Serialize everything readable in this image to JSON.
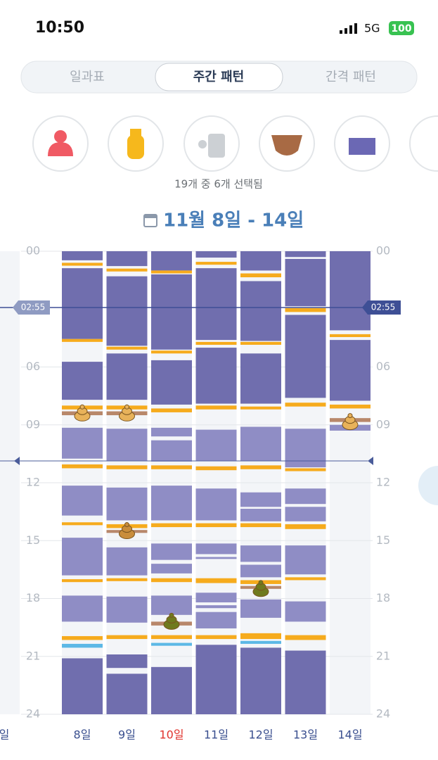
{
  "status": {
    "time": "10:50",
    "network": "5G",
    "battery": "100"
  },
  "tabs": [
    "일과표",
    "주간 패턴",
    "간격 패턴"
  ],
  "active_tab": 1,
  "selection_note": "19개 중 6개 선택됨",
  "range_title": "11월 8일 - 14일",
  "hour_ticks": [
    {
      "value": 0,
      "label": "00"
    },
    {
      "value": 6,
      "label": "06"
    },
    {
      "value": 9,
      "label": "09"
    },
    {
      "value": 12,
      "label": "12"
    },
    {
      "value": 15,
      "label": "15"
    },
    {
      "value": 18,
      "label": "18"
    },
    {
      "value": 21,
      "label": "21"
    },
    {
      "value": 24,
      "label": "24"
    }
  ],
  "hour_range": [
    0,
    24
  ],
  "time_marker": {
    "label": "02:55",
    "hour": 2.9167
  },
  "reference_line_hour": 10.87,
  "left_day_label": "일",
  "days": [
    {
      "label": "8일",
      "color": "#3a4f8f",
      "blocks": [
        [
          0,
          0.47,
          "#706eae"
        ],
        [
          0.6,
          0.75,
          "#f6ab1d"
        ],
        [
          0.88,
          4.55,
          "#706eae"
        ],
        [
          4.55,
          4.7,
          "#f6ab1d"
        ],
        [
          5.73,
          7.7,
          "#706eae"
        ],
        [
          8.0,
          8.2,
          "#f6ab1d"
        ],
        [
          8.3,
          8.5,
          "#b8876a"
        ],
        [
          9.15,
          10.75,
          "#8f8dc5"
        ],
        [
          11.05,
          11.25,
          "#f6ab1d"
        ],
        [
          12.15,
          13.7,
          "#8f8dc5"
        ],
        [
          14.05,
          14.2,
          "#f6ab1d"
        ],
        [
          14.85,
          16.8,
          "#8f8dc5"
        ],
        [
          17.0,
          17.15,
          "#f6ab1d"
        ],
        [
          17.85,
          19.2,
          "#8f8dc5"
        ],
        [
          19.95,
          20.15,
          "#f6ab1d"
        ],
        [
          20.35,
          20.55,
          "#5cb8e6"
        ],
        [
          21.1,
          24,
          "#706eae"
        ]
      ],
      "icons": [
        [
          8.4,
          "#e8b25a"
        ]
      ]
    },
    {
      "label": "9일",
      "color": "#3a4f8f",
      "blocks": [
        [
          0,
          0.77,
          "#706eae"
        ],
        [
          0.9,
          1.05,
          "#f6ab1d"
        ],
        [
          1.3,
          4.9,
          "#706eae"
        ],
        [
          4.95,
          5.1,
          "#f6ab1d"
        ],
        [
          5.3,
          7.7,
          "#706eae"
        ],
        [
          8.0,
          8.2,
          "#f6ab1d"
        ],
        [
          8.3,
          8.5,
          "#b8876a"
        ],
        [
          9.2,
          10.85,
          "#8f8dc5"
        ],
        [
          11.1,
          11.3,
          "#f6ab1d"
        ],
        [
          12.25,
          13.95,
          "#8f8dc5"
        ],
        [
          14.15,
          14.35,
          "#f6ab1d"
        ],
        [
          14.45,
          14.6,
          "#b8876a"
        ],
        [
          15.35,
          16.8,
          "#8f8dc5"
        ],
        [
          16.95,
          17.1,
          "#f6ab1d"
        ],
        [
          17.9,
          19.25,
          "#8f8dc5"
        ],
        [
          19.9,
          20.1,
          "#f6ab1d"
        ],
        [
          20.9,
          21.6,
          "#706eae"
        ],
        [
          21.9,
          24,
          "#706eae"
        ]
      ],
      "icons": [
        [
          8.4,
          "#e8b25a"
        ],
        [
          14.5,
          "#c98d3c"
        ]
      ]
    },
    {
      "label": "10일",
      "color": "#e0342e",
      "blocks": [
        [
          0,
          1,
          "#706eae"
        ],
        [
          1.0,
          1.15,
          "#f6ab1d"
        ],
        [
          1.2,
          5.1,
          "#706eae"
        ],
        [
          5.15,
          5.3,
          "#f6ab1d"
        ],
        [
          5.65,
          7.95,
          "#706eae"
        ],
        [
          8.15,
          8.35,
          "#f6ab1d"
        ],
        [
          9.15,
          9.6,
          "#8f8dc5"
        ],
        [
          9.8,
          10.9,
          "#8f8dc5"
        ],
        [
          11.1,
          11.3,
          "#f6ab1d"
        ],
        [
          12.15,
          13.95,
          "#8f8dc5"
        ],
        [
          14.1,
          14.3,
          "#f6ab1d"
        ],
        [
          15.15,
          16.0,
          "#8f8dc5"
        ],
        [
          16.2,
          16.7,
          "#8f8dc5"
        ],
        [
          16.95,
          17.15,
          "#f6ab1d"
        ],
        [
          17.85,
          18.85,
          "#8f8dc5"
        ],
        [
          19.2,
          19.4,
          "#b8876a"
        ],
        [
          19.9,
          20.1,
          "#f6ab1d"
        ],
        [
          20.3,
          20.45,
          "#5cb8e6"
        ],
        [
          21.55,
          24,
          "#706eae"
        ]
      ],
      "icons": [
        [
          19.2,
          "#6f7a1e"
        ]
      ]
    },
    {
      "label": "11일",
      "color": "#3a4f8f",
      "blocks": [
        [
          0,
          0.33,
          "#706eae"
        ],
        [
          0.55,
          0.7,
          "#f6ab1d"
        ],
        [
          0.88,
          4.6,
          "#706eae"
        ],
        [
          4.7,
          4.85,
          "#f6ab1d"
        ],
        [
          5.0,
          7.9,
          "#706eae"
        ],
        [
          8.0,
          8.2,
          "#f6ab1d"
        ],
        [
          9.25,
          10.85,
          "#8f8dc5"
        ],
        [
          11.15,
          11.35,
          "#f6ab1d"
        ],
        [
          12.3,
          13.95,
          "#8f8dc5"
        ],
        [
          14.1,
          14.3,
          "#f6ab1d"
        ],
        [
          15.15,
          15.7,
          "#8f8dc5"
        ],
        [
          15.85,
          15.95,
          "#8f8dc5"
        ],
        [
          16.95,
          17.2,
          "#f6ab1d"
        ],
        [
          17.7,
          18.2,
          "#8f8dc5"
        ],
        [
          18.35,
          18.5,
          "#8f8dc5"
        ],
        [
          18.7,
          19.55,
          "#8f8dc5"
        ],
        [
          19.9,
          20.1,
          "#f6ab1d"
        ],
        [
          20.4,
          24,
          "#706eae"
        ]
      ],
      "icons": []
    },
    {
      "label": "12일",
      "color": "#3a4f8f",
      "blocks": [
        [
          0,
          1,
          "#706eae"
        ],
        [
          1.15,
          1.35,
          "#f6ab1d"
        ],
        [
          1.55,
          4.65,
          "#706eae"
        ],
        [
          4.7,
          4.85,
          "#f6ab1d"
        ],
        [
          5.3,
          7.9,
          "#706eae"
        ],
        [
          8.05,
          8.2,
          "#f6ab1d"
        ],
        [
          9.1,
          10.85,
          "#8f8dc5"
        ],
        [
          11.1,
          11.3,
          "#f6ab1d"
        ],
        [
          12.5,
          13.25,
          "#8f8dc5"
        ],
        [
          13.35,
          14.0,
          "#8f8dc5"
        ],
        [
          14.1,
          14.3,
          "#f6ab1d"
        ],
        [
          15.25,
          16.1,
          "#8f8dc5"
        ],
        [
          16.25,
          16.9,
          "#8f8dc5"
        ],
        [
          17.05,
          17.25,
          "#f6ab1d"
        ],
        [
          17.35,
          17.5,
          "#b8876a"
        ],
        [
          18.05,
          19.0,
          "#8f8dc5"
        ],
        [
          19.8,
          20.1,
          "#f6ab1d"
        ],
        [
          20.2,
          20.35,
          "#5cb8e6"
        ],
        [
          20.55,
          24,
          "#706eae"
        ]
      ],
      "icons": [
        [
          17.5,
          "#6f7a1e"
        ]
      ]
    },
    {
      "label": "13일",
      "color": "#3a4f8f",
      "blocks": [
        [
          0,
          0.3,
          "#706eae"
        ],
        [
          0.4,
          2.85,
          "#706eae"
        ],
        [
          2.95,
          3.15,
          "#f6ab1d"
        ],
        [
          3.3,
          7.6,
          "#706eae"
        ],
        [
          7.85,
          8.05,
          "#f6ab1d"
        ],
        [
          9.2,
          11.2,
          "#8f8dc5"
        ],
        [
          11.25,
          11.4,
          "#f6ab1d"
        ],
        [
          12.3,
          13.1,
          "#8f8dc5"
        ],
        [
          13.25,
          14.0,
          "#8f8dc5"
        ],
        [
          14.15,
          14.4,
          "#f6ab1d"
        ],
        [
          15.25,
          16.75,
          "#8f8dc5"
        ],
        [
          16.9,
          17.05,
          "#f6ab1d"
        ],
        [
          18.15,
          19.2,
          "#8f8dc5"
        ],
        [
          19.9,
          20.15,
          "#f6ab1d"
        ],
        [
          20.7,
          24,
          "#706eae"
        ]
      ],
      "icons": []
    },
    {
      "label": "14일",
      "color": "#3a4f8f",
      "blocks": [
        [
          0,
          4.1,
          "#706eae"
        ],
        [
          4.3,
          4.45,
          "#f6ab1d"
        ],
        [
          4.6,
          7.75,
          "#706eae"
        ],
        [
          7.95,
          8.15,
          "#f6ab1d"
        ],
        [
          8.65,
          8.85,
          "#b8876a"
        ],
        [
          9.0,
          9.3,
          "#8f8dc5"
        ]
      ],
      "icons": [
        [
          8.85,
          "#e8b25a"
        ]
      ]
    }
  ]
}
